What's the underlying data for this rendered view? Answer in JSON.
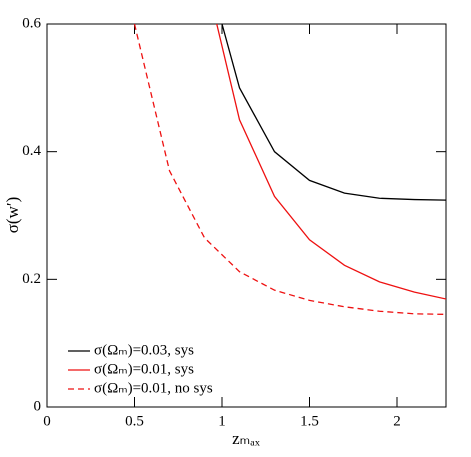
{
  "chart_data": {
    "type": "line",
    "xlabel": "zₘₐₓ",
    "ylabel": "σ(w′)",
    "xlim": [
      0,
      2.28
    ],
    "ylim": [
      0,
      0.6
    ],
    "xticks": [
      0,
      0.5,
      1,
      1.5,
      2
    ],
    "yticks": [
      0,
      0.2,
      0.4,
      0.6
    ],
    "legend": "lower left",
    "series": [
      {
        "name": "σ(Ωₘ)=0.03, sys",
        "color": "#000000",
        "linestyle": "solid",
        "x": [
          1.0,
          1.1,
          1.3,
          1.5,
          1.7,
          1.9,
          2.1,
          2.3
        ],
        "values": [
          0.6,
          0.5,
          0.4,
          0.355,
          0.335,
          0.327,
          0.325,
          0.324
        ]
      },
      {
        "name": "σ(Ωₘ)=0.01, sys",
        "color": "#ee1111",
        "linestyle": "solid",
        "x": [
          0.97,
          1.1,
          1.3,
          1.5,
          1.7,
          1.9,
          2.1,
          2.3
        ],
        "values": [
          0.6,
          0.45,
          0.33,
          0.262,
          0.222,
          0.196,
          0.18,
          0.168
        ]
      },
      {
        "name": "σ(Ωₘ)=0.01, no sys",
        "color": "#ee1111",
        "linestyle": "dashed",
        "x": [
          0.5,
          0.7,
          0.9,
          1.1,
          1.3,
          1.5,
          1.7,
          1.9,
          2.1,
          2.3
        ],
        "values": [
          0.6,
          0.37,
          0.265,
          0.212,
          0.183,
          0.167,
          0.157,
          0.15,
          0.146,
          0.145
        ]
      }
    ]
  }
}
